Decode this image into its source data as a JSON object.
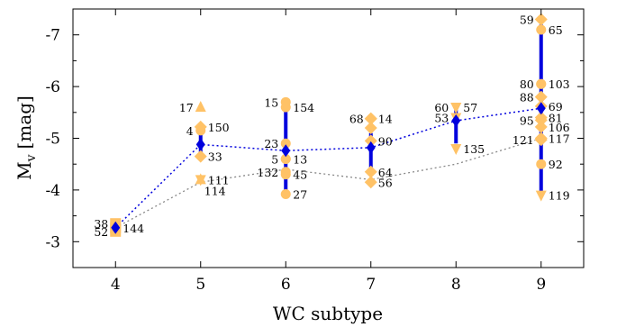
{
  "chart_data": {
    "type": "scatter",
    "xlabel": "WC subtype",
    "ylabel_main": "M",
    "ylabel_sub": "v",
    "ylabel_unit": "[mag]",
    "xlim": [
      3.5,
      9.5
    ],
    "ylim": [
      -2.5,
      -7.5
    ],
    "x_ticks": [
      4,
      5,
      6,
      7,
      8,
      9
    ],
    "y_ticks": [
      -3,
      -4,
      -5,
      -6,
      -7
    ],
    "grid": false,
    "colors": {
      "points": "#ffc266",
      "mean": "#0000dd",
      "range": "#0000dd",
      "gray_line": "#888888"
    },
    "stars": [
      {
        "x": 4,
        "y": -3.35,
        "label": "38",
        "marker": "square",
        "side": "left"
      },
      {
        "x": 4,
        "y": -3.2,
        "label": "52",
        "marker": "square",
        "side": "left"
      },
      {
        "x": 4,
        "y": -3.27,
        "label": "144",
        "marker": "square",
        "side": "right"
      },
      {
        "x": 5,
        "y": -5.6,
        "label": "17",
        "marker": "up",
        "side": "left"
      },
      {
        "x": 5,
        "y": -5.22,
        "label": "150",
        "marker": "diamond",
        "side": "right"
      },
      {
        "x": 5,
        "y": -5.15,
        "label": "4",
        "marker": "circle",
        "side": "left"
      },
      {
        "x": 5,
        "y": -4.65,
        "label": "33",
        "marker": "diamond",
        "side": "right"
      },
      {
        "x": 5,
        "y": -4.2,
        "label": "111",
        "marker": "up",
        "side": "right"
      },
      {
        "x": 5,
        "y": -4.2,
        "label": "114",
        "marker": "down",
        "side": "right-low"
      },
      {
        "x": 6,
        "y": -5.7,
        "label": "15",
        "marker": "circle",
        "side": "left"
      },
      {
        "x": 6,
        "y": -5.6,
        "label": "154",
        "marker": "circle",
        "side": "right"
      },
      {
        "x": 6,
        "y": -4.9,
        "label": "23",
        "marker": "circle",
        "side": "left"
      },
      {
        "x": 6,
        "y": -4.6,
        "label": "5",
        "marker": "circle",
        "side": "left"
      },
      {
        "x": 6,
        "y": -4.6,
        "label": "13",
        "marker": "circle",
        "side": "right"
      },
      {
        "x": 6,
        "y": -4.35,
        "label": "132",
        "marker": "circle",
        "side": "left"
      },
      {
        "x": 6,
        "y": -4.3,
        "label": "45",
        "marker": "circle",
        "side": "right"
      },
      {
        "x": 6,
        "y": -3.92,
        "label": "27",
        "marker": "circle",
        "side": "right"
      },
      {
        "x": 7,
        "y": -5.38,
        "label": "68",
        "marker": "diamond",
        "side": "left"
      },
      {
        "x": 7,
        "y": -5.38,
        "label": "14",
        "marker": "diamond",
        "side": "right"
      },
      {
        "x": 7,
        "y": -5.2,
        "label": "",
        "marker": "diamond",
        "side": "none"
      },
      {
        "x": 7,
        "y": -4.95,
        "label": "90",
        "marker": "diamond",
        "side": "right"
      },
      {
        "x": 7,
        "y": -4.35,
        "label": "64",
        "marker": "diamond",
        "side": "right"
      },
      {
        "x": 7,
        "y": -4.15,
        "label": "56",
        "marker": "diamond",
        "side": "right"
      },
      {
        "x": 8,
        "y": -5.6,
        "label": "60",
        "marker": "down",
        "side": "left"
      },
      {
        "x": 8,
        "y": -5.6,
        "label": "57",
        "marker": "down",
        "side": "right"
      },
      {
        "x": 8,
        "y": -5.4,
        "label": "53",
        "marker": "down",
        "side": "left"
      },
      {
        "x": 8,
        "y": -4.8,
        "label": "135",
        "marker": "down",
        "side": "right"
      },
      {
        "x": 9,
        "y": -7.3,
        "label": "59",
        "marker": "diamond",
        "side": "left"
      },
      {
        "x": 9,
        "y": -7.1,
        "label": "65",
        "marker": "circle",
        "side": "right"
      },
      {
        "x": 9,
        "y": -6.05,
        "label": "80",
        "marker": "circle",
        "side": "left"
      },
      {
        "x": 9,
        "y": -6.05,
        "label": "103",
        "marker": "circle",
        "side": "right"
      },
      {
        "x": 9,
        "y": -5.8,
        "label": "88",
        "marker": "diamond",
        "side": "left"
      },
      {
        "x": 9,
        "y": -5.62,
        "label": "69",
        "marker": "diamond",
        "side": "right"
      },
      {
        "x": 9,
        "y": -5.35,
        "label": "95",
        "marker": "diamond",
        "side": "left"
      },
      {
        "x": 9,
        "y": -5.4,
        "label": "81",
        "marker": "diamond",
        "side": "right"
      },
      {
        "x": 9,
        "y": -5.22,
        "label": "106",
        "marker": "diamond",
        "side": "right"
      },
      {
        "x": 9,
        "y": -4.97,
        "label": "121",
        "marker": "diamond",
        "side": "left"
      },
      {
        "x": 9,
        "y": -5.0,
        "label": "117",
        "marker": "diamond",
        "side": "right"
      },
      {
        "x": 9,
        "y": -4.5,
        "label": "92",
        "marker": "circle",
        "side": "right"
      },
      {
        "x": 9,
        "y": -3.9,
        "label": "119",
        "marker": "down",
        "side": "right"
      }
    ],
    "mean_series": {
      "x": [
        4,
        5,
        6,
        7,
        8,
        9
      ],
      "y": [
        -3.27,
        -4.88,
        -4.76,
        -4.82,
        -5.34,
        -5.58
      ]
    },
    "lower_series": {
      "x": [
        4,
        5,
        6,
        7,
        8,
        9
      ],
      "y": [
        -3.27,
        -4.15,
        -4.4,
        -4.2,
        -4.5,
        -5.0
      ]
    },
    "ranges": [
      {
        "x": 5,
        "y1": -4.6,
        "y2": -5.2
      },
      {
        "x": 6,
        "y1": -4.0,
        "y2": -5.6
      },
      {
        "x": 7,
        "y1": -4.4,
        "y2": -5.1
      },
      {
        "x": 8,
        "y1": -4.9,
        "y2": -5.6
      },
      {
        "x": 9,
        "y1": -3.9,
        "y2": -7.2
      }
    ]
  }
}
